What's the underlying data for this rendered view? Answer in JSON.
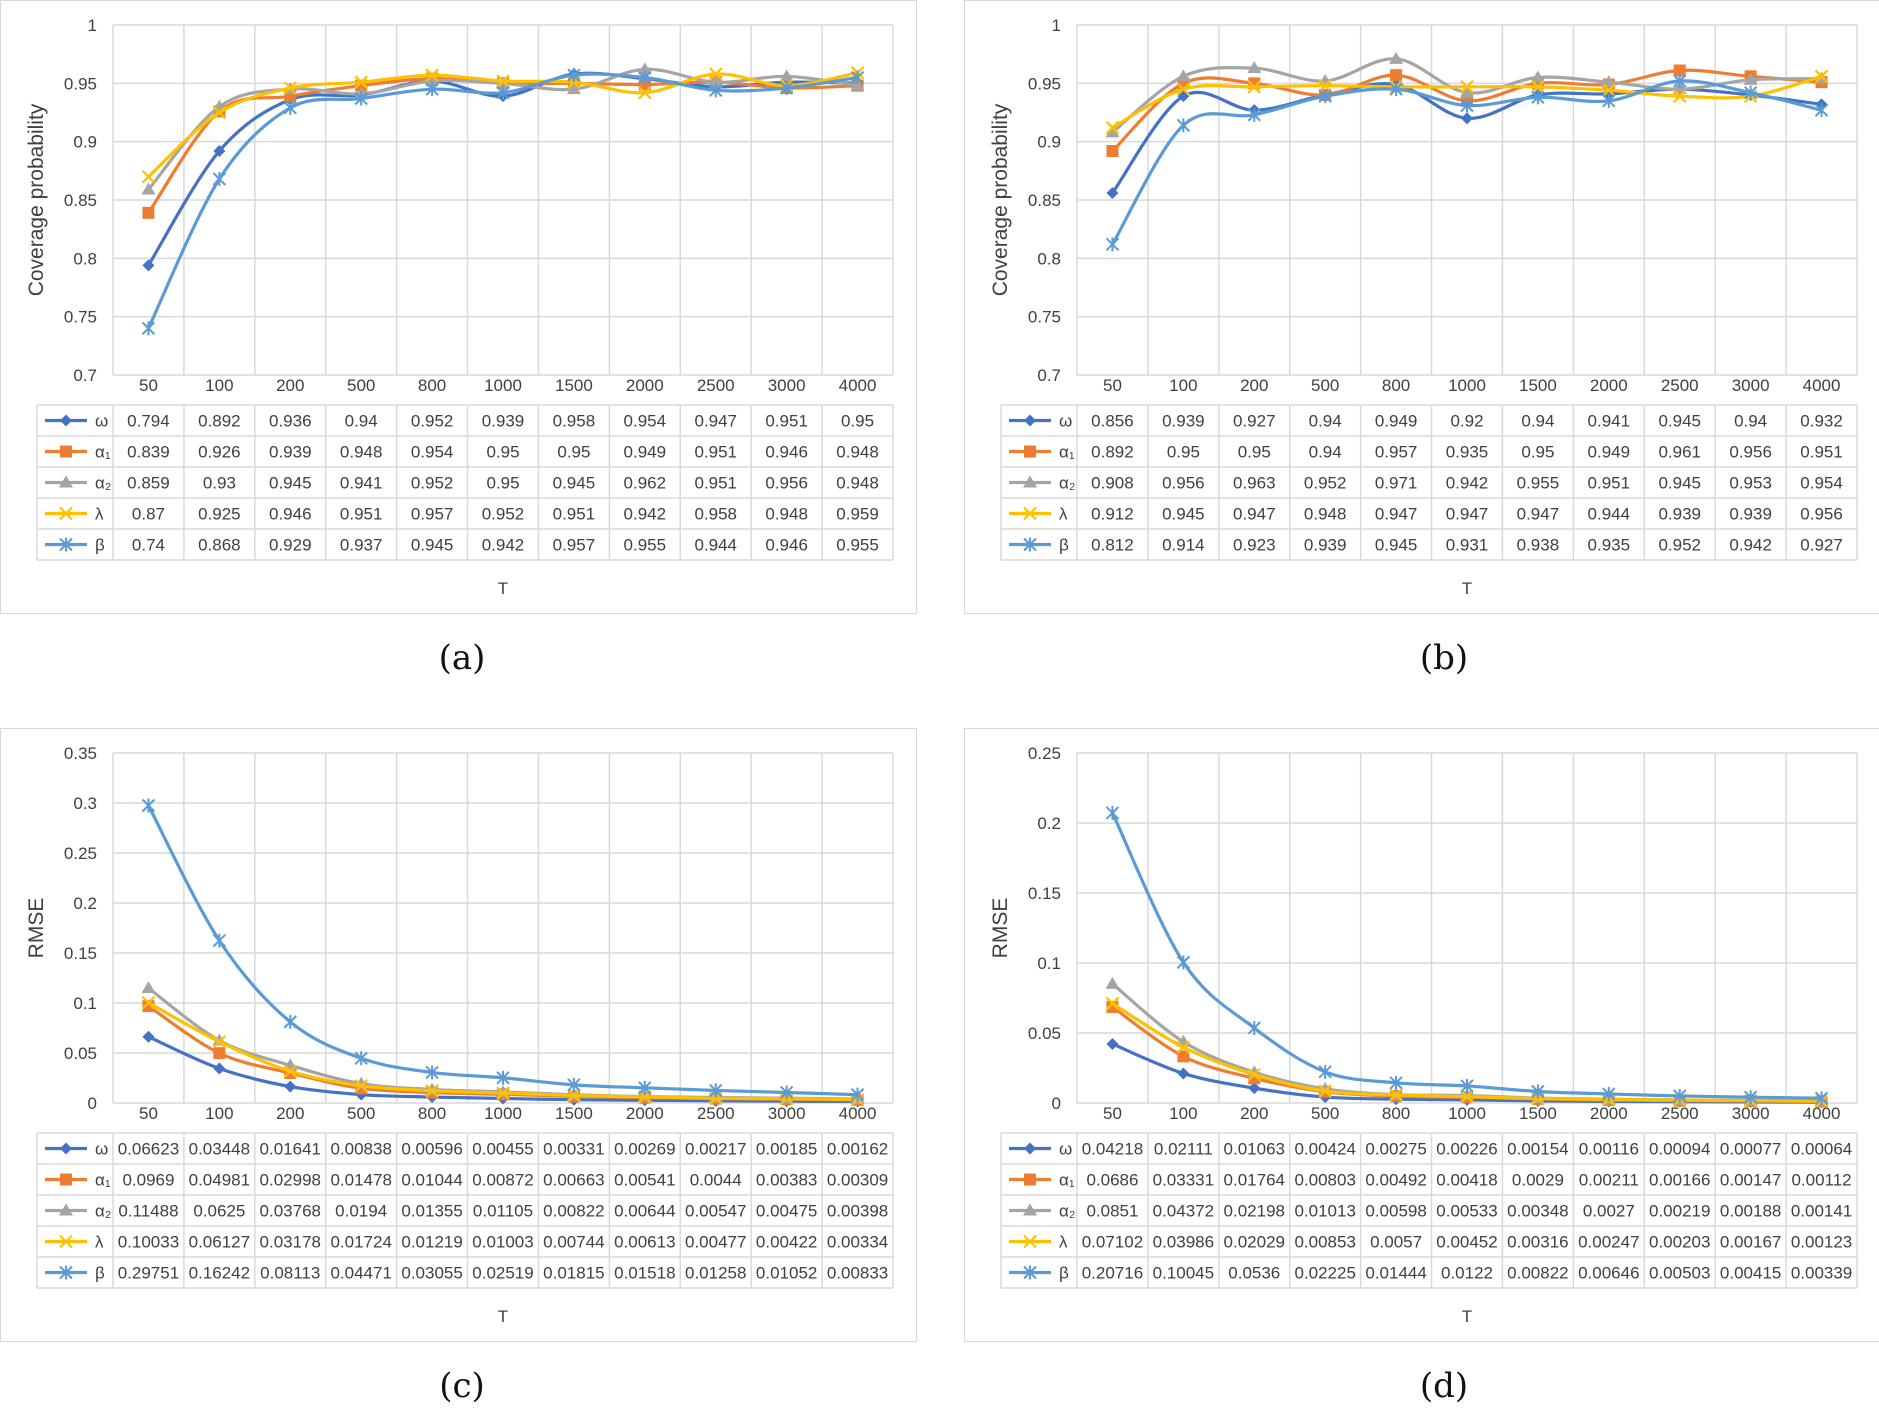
{
  "captions": [
    "(a)",
    "(b)",
    "(c)",
    "(d)"
  ],
  "chart_data": [
    {
      "type": "line",
      "ylabel": "Coverage probability",
      "xlabel": "T",
      "ylim": [
        0.7,
        1
      ],
      "yticks": [
        "0.7",
        "0.75",
        "0.8",
        "0.85",
        "0.9",
        "0.95",
        "1"
      ],
      "categories": [
        "50",
        "100",
        "200",
        "500",
        "800",
        "1000",
        "1500",
        "2000",
        "2500",
        "3000",
        "4000"
      ],
      "grid": true,
      "legend": "data-table",
      "series": [
        {
          "name": "ω",
          "color": "#4472c4",
          "marker": "diamond",
          "values": [
            0.794,
            0.892,
            0.936,
            0.94,
            0.952,
            0.939,
            0.958,
            0.954,
            0.947,
            0.951,
            0.95
          ]
        },
        {
          "name": "α₁",
          "color": "#ed7d31",
          "marker": "square",
          "values": [
            0.839,
            0.926,
            0.939,
            0.948,
            0.954,
            0.95,
            0.95,
            0.949,
            0.951,
            0.946,
            0.948
          ]
        },
        {
          "name": "α₂",
          "color": "#a5a5a5",
          "marker": "triangle",
          "values": [
            0.859,
            0.93,
            0.945,
            0.941,
            0.952,
            0.95,
            0.945,
            0.962,
            0.951,
            0.956,
            0.948
          ]
        },
        {
          "name": "λ",
          "color": "#ffc000",
          "marker": "x",
          "values": [
            0.87,
            0.925,
            0.946,
            0.951,
            0.957,
            0.952,
            0.951,
            0.942,
            0.958,
            0.948,
            0.959
          ]
        },
        {
          "name": "β",
          "color": "#5b9bd5",
          "marker": "star",
          "values": [
            0.74,
            0.868,
            0.929,
            0.937,
            0.945,
            0.942,
            0.957,
            0.955,
            0.944,
            0.946,
            0.955
          ]
        }
      ],
      "table": [
        [
          "0.794",
          "0.892",
          "0.936",
          "0.94",
          "0.952",
          "0.939",
          "0.958",
          "0.954",
          "0.947",
          "0.951",
          "0.95"
        ],
        [
          "0.839",
          "0.926",
          "0.939",
          "0.948",
          "0.954",
          "0.95",
          "0.95",
          "0.949",
          "0.951",
          "0.946",
          "0.948"
        ],
        [
          "0.859",
          "0.93",
          "0.945",
          "0.941",
          "0.952",
          "0.95",
          "0.945",
          "0.962",
          "0.951",
          "0.956",
          "0.948"
        ],
        [
          "0.87",
          "0.925",
          "0.946",
          "0.951",
          "0.957",
          "0.952",
          "0.951",
          "0.942",
          "0.958",
          "0.948",
          "0.959"
        ],
        [
          "0.74",
          "0.868",
          "0.929",
          "0.937",
          "0.945",
          "0.942",
          "0.957",
          "0.955",
          "0.944",
          "0.946",
          "0.955"
        ]
      ]
    },
    {
      "type": "line",
      "ylabel": "Coverage probability",
      "xlabel": "T",
      "ylim": [
        0.7,
        1
      ],
      "yticks": [
        "0.7",
        "0.75",
        "0.8",
        "0.85",
        "0.9",
        "0.95",
        "1"
      ],
      "categories": [
        "50",
        "100",
        "200",
        "500",
        "800",
        "1000",
        "1500",
        "2000",
        "2500",
        "3000",
        "4000"
      ],
      "grid": true,
      "legend": "data-table",
      "series": [
        {
          "name": "ω",
          "color": "#4472c4",
          "marker": "diamond",
          "values": [
            0.856,
            0.939,
            0.927,
            0.94,
            0.949,
            0.92,
            0.94,
            0.941,
            0.945,
            0.94,
            0.932
          ]
        },
        {
          "name": "α₁",
          "color": "#ed7d31",
          "marker": "square",
          "values": [
            0.892,
            0.95,
            0.95,
            0.94,
            0.957,
            0.935,
            0.95,
            0.949,
            0.961,
            0.956,
            0.951
          ]
        },
        {
          "name": "α₂",
          "color": "#a5a5a5",
          "marker": "triangle",
          "values": [
            0.908,
            0.956,
            0.963,
            0.952,
            0.971,
            0.942,
            0.955,
            0.951,
            0.945,
            0.953,
            0.954
          ]
        },
        {
          "name": "λ",
          "color": "#ffc000",
          "marker": "x",
          "values": [
            0.912,
            0.945,
            0.947,
            0.948,
            0.947,
            0.947,
            0.947,
            0.944,
            0.939,
            0.939,
            0.956
          ]
        },
        {
          "name": "β",
          "color": "#5b9bd5",
          "marker": "star",
          "values": [
            0.812,
            0.914,
            0.923,
            0.939,
            0.945,
            0.931,
            0.938,
            0.935,
            0.952,
            0.942,
            0.927
          ]
        }
      ],
      "table": [
        [
          "0.856",
          "0.939",
          "0.927",
          "0.94",
          "0.949",
          "0.92",
          "0.94",
          "0.941",
          "0.945",
          "0.94",
          "0.932"
        ],
        [
          "0.892",
          "0.95",
          "0.95",
          "0.94",
          "0.957",
          "0.935",
          "0.95",
          "0.949",
          "0.961",
          "0.956",
          "0.951"
        ],
        [
          "0.908",
          "0.956",
          "0.963",
          "0.952",
          "0.971",
          "0.942",
          "0.955",
          "0.951",
          "0.945",
          "0.953",
          "0.954"
        ],
        [
          "0.912",
          "0.945",
          "0.947",
          "0.948",
          "0.947",
          "0.947",
          "0.947",
          "0.944",
          "0.939",
          "0.939",
          "0.956"
        ],
        [
          "0.812",
          "0.914",
          "0.923",
          "0.939",
          "0.945",
          "0.931",
          "0.938",
          "0.935",
          "0.952",
          "0.942",
          "0.927"
        ]
      ]
    },
    {
      "type": "line",
      "ylabel": "RMSE",
      "xlabel": "T",
      "ylim": [
        0,
        0.35
      ],
      "yticks": [
        "0",
        "0.05",
        "0.1",
        "0.15",
        "0.2",
        "0.25",
        "0.3",
        "0.35"
      ],
      "categories": [
        "50",
        "100",
        "200",
        "500",
        "800",
        "1000",
        "1500",
        "2000",
        "2500",
        "3000",
        "4000"
      ],
      "grid": true,
      "legend": "data-table",
      "series": [
        {
          "name": "ω",
          "color": "#4472c4",
          "marker": "diamond",
          "values": [
            0.06623,
            0.03448,
            0.01641,
            0.00838,
            0.00596,
            0.00455,
            0.00331,
            0.00269,
            0.00217,
            0.00185,
            0.00162
          ]
        },
        {
          "name": "α₁",
          "color": "#ed7d31",
          "marker": "square",
          "values": [
            0.0969,
            0.04981,
            0.02998,
            0.01478,
            0.01044,
            0.00872,
            0.00663,
            0.00541,
            0.0044,
            0.00383,
            0.00309
          ]
        },
        {
          "name": "α₂",
          "color": "#a5a5a5",
          "marker": "triangle",
          "values": [
            0.11488,
            0.0625,
            0.03768,
            0.0194,
            0.01355,
            0.01105,
            0.00822,
            0.00644,
            0.00547,
            0.00475,
            0.00398
          ]
        },
        {
          "name": "λ",
          "color": "#ffc000",
          "marker": "x",
          "values": [
            0.10033,
            0.06127,
            0.03178,
            0.01724,
            0.01219,
            0.01003,
            0.00744,
            0.00613,
            0.00477,
            0.00422,
            0.00334
          ]
        },
        {
          "name": "β",
          "color": "#5b9bd5",
          "marker": "star",
          "values": [
            0.29751,
            0.16242,
            0.08113,
            0.04471,
            0.03055,
            0.02519,
            0.01815,
            0.01518,
            0.01258,
            0.01052,
            0.00833
          ]
        }
      ],
      "table": [
        [
          "0.06623",
          "0.03448",
          "0.01641",
          "0.00838",
          "0.00596",
          "0.00455",
          "0.00331",
          "0.00269",
          "0.00217",
          "0.00185",
          "0.00162"
        ],
        [
          "0.0969",
          "0.04981",
          "0.02998",
          "0.01478",
          "0.01044",
          "0.00872",
          "0.00663",
          "0.00541",
          "0.0044",
          "0.00383",
          "0.00309"
        ],
        [
          "0.11488",
          "0.0625",
          "0.03768",
          "0.0194",
          "0.01355",
          "0.01105",
          "0.00822",
          "0.00644",
          "0.00547",
          "0.00475",
          "0.00398"
        ],
        [
          "0.10033",
          "0.06127",
          "0.03178",
          "0.01724",
          "0.01219",
          "0.01003",
          "0.00744",
          "0.00613",
          "0.00477",
          "0.00422",
          "0.00334"
        ],
        [
          "0.29751",
          "0.16242",
          "0.08113",
          "0.04471",
          "0.03055",
          "0.02519",
          "0.01815",
          "0.01518",
          "0.01258",
          "0.01052",
          "0.00833"
        ]
      ]
    },
    {
      "type": "line",
      "ylabel": "RMSE",
      "xlabel": "T",
      "ylim": [
        0,
        0.25
      ],
      "yticks": [
        "0",
        "0.05",
        "0.1",
        "0.15",
        "0.2",
        "0.25"
      ],
      "categories": [
        "50",
        "100",
        "200",
        "500",
        "800",
        "1000",
        "1500",
        "2000",
        "2500",
        "3000",
        "4000"
      ],
      "grid": true,
      "legend": "data-table",
      "series": [
        {
          "name": "ω",
          "color": "#4472c4",
          "marker": "diamond",
          "values": [
            0.04218,
            0.02111,
            0.01063,
            0.00424,
            0.00275,
            0.00226,
            0.00154,
            0.00116,
            0.00094,
            0.00077,
            0.00064
          ]
        },
        {
          "name": "α₁",
          "color": "#ed7d31",
          "marker": "square",
          "values": [
            0.0686,
            0.03331,
            0.01764,
            0.00803,
            0.00492,
            0.00418,
            0.0029,
            0.00211,
            0.00166,
            0.00147,
            0.00112
          ]
        },
        {
          "name": "α₂",
          "color": "#a5a5a5",
          "marker": "triangle",
          "values": [
            0.0851,
            0.04372,
            0.02198,
            0.01013,
            0.00598,
            0.00533,
            0.00348,
            0.0027,
            0.00219,
            0.00188,
            0.00141
          ]
        },
        {
          "name": "λ",
          "color": "#ffc000",
          "marker": "x",
          "values": [
            0.07102,
            0.03986,
            0.02029,
            0.00853,
            0.0057,
            0.00452,
            0.00316,
            0.00247,
            0.00203,
            0.00167,
            0.00123
          ]
        },
        {
          "name": "β",
          "color": "#5b9bd5",
          "marker": "star",
          "values": [
            0.20716,
            0.10045,
            0.0536,
            0.02225,
            0.01444,
            0.0122,
            0.00822,
            0.00646,
            0.00503,
            0.00415,
            0.00339
          ]
        }
      ],
      "table": [
        [
          "0.04218",
          "0.02111",
          "0.01063",
          "0.00424",
          "0.00275",
          "0.00226",
          "0.00154",
          "0.00116",
          "0.00094",
          "0.00077",
          "0.00064"
        ],
        [
          "0.0686",
          "0.03331",
          "0.01764",
          "0.00803",
          "0.00492",
          "0.00418",
          "0.0029",
          "0.00211",
          "0.00166",
          "0.00147",
          "0.00112"
        ],
        [
          "0.0851",
          "0.04372",
          "0.02198",
          "0.01013",
          "0.00598",
          "0.00533",
          "0.00348",
          "0.0027",
          "0.00219",
          "0.00188",
          "0.00141"
        ],
        [
          "0.07102",
          "0.03986",
          "0.02029",
          "0.00853",
          "0.0057",
          "0.00452",
          "0.00316",
          "0.00247",
          "0.00203",
          "0.00167",
          "0.00123"
        ],
        [
          "0.20716",
          "0.10045",
          "0.0536",
          "0.02225",
          "0.01444",
          "0.0122",
          "0.00822",
          "0.00646",
          "0.00503",
          "0.00415",
          "0.00339"
        ]
      ]
    }
  ]
}
